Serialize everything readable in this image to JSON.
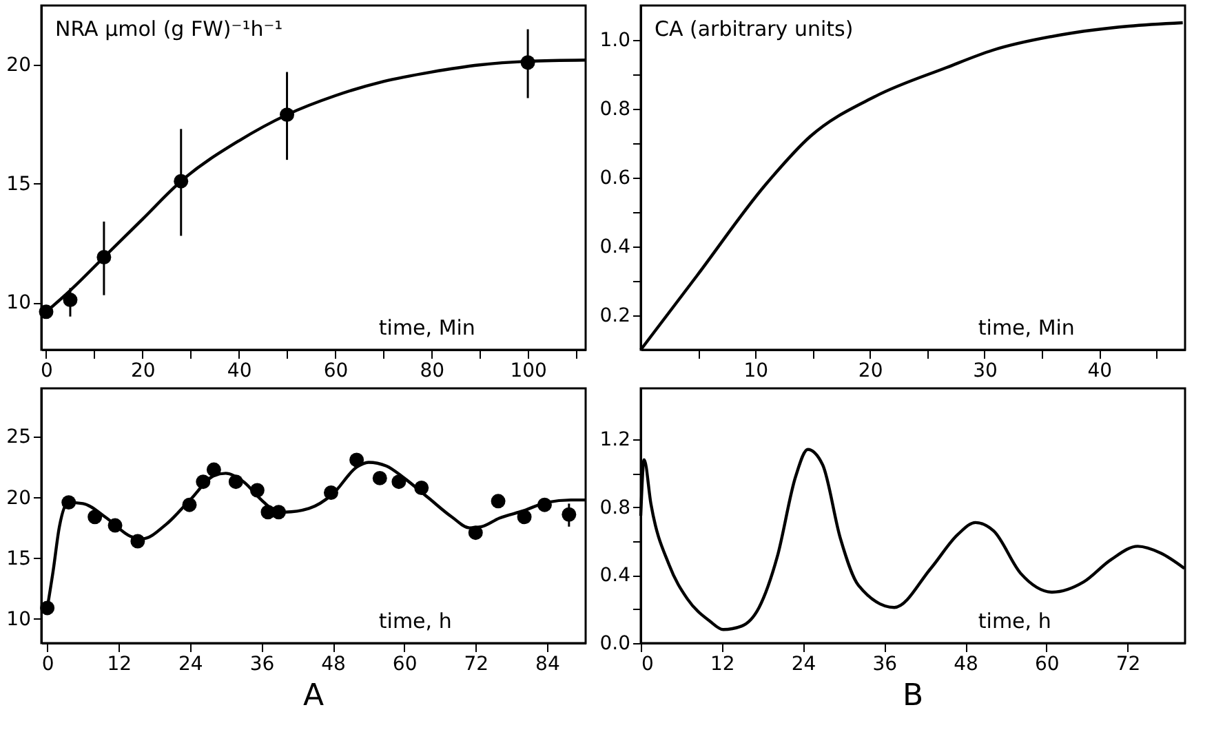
{
  "chart_data": [
    {
      "type": "scatter",
      "ylabel": "NRA µmol (g FW)⁻¹h⁻¹",
      "xlabel": "time, Min",
      "xlim": [
        -1,
        112
      ],
      "ylim": [
        8,
        22.5
      ],
      "xticks": [
        0,
        {
          "value": 10,
          "label": null
        },
        20,
        {
          "value": 30,
          "label": null
        },
        40,
        {
          "value": 50,
          "label": null
        },
        60,
        {
          "value": 70,
          "label": null
        },
        80,
        {
          "value": 90,
          "label": null
        },
        100,
        {
          "value": 110,
          "label": null
        }
      ],
      "yticks": [
        10,
        15,
        20
      ],
      "grid": false,
      "series": [
        {
          "marker": "circle",
          "color": "#000000",
          "x": [
            0,
            5,
            12,
            28,
            50,
            100
          ],
          "values": [
            9.6,
            10.1,
            11.9,
            15.1,
            17.9,
            20.1
          ],
          "errors": [
            null,
            [
              9.4,
              10.6
            ],
            [
              10.3,
              13.4
            ],
            [
              12.8,
              17.3
            ],
            [
              16.0,
              19.7
            ],
            [
              18.6,
              21.5
            ]
          ]
        },
        {
          "type": "line",
          "color": "#000000",
          "x": [
            0,
            5,
            12,
            20,
            28,
            40,
            50,
            60,
            70,
            80,
            90,
            100,
            112
          ],
          "values": [
            9.6,
            10.5,
            11.9,
            13.5,
            15.1,
            16.8,
            17.9,
            18.7,
            19.3,
            19.7,
            20.0,
            20.15,
            20.2
          ]
        }
      ]
    },
    {
      "type": "line",
      "ylabel": "CA (arbitrary units)",
      "xlabel": "time, Min",
      "xlim": [
        0,
        47.5
      ],
      "ylim": [
        0.1,
        1.1
      ],
      "xticks": [
        {
          "value": 5,
          "label": null
        },
        10,
        {
          "value": 15,
          "label": null
        },
        20,
        {
          "value": 25,
          "label": null
        },
        30,
        {
          "value": 35,
          "label": null
        },
        40,
        {
          "value": 45,
          "label": null
        }
      ],
      "yticks": [
        0.2,
        {
          "value": 0.3,
          "label": null
        },
        0.4,
        {
          "value": 0.5,
          "label": null
        },
        0.6,
        {
          "value": 0.7,
          "label": null
        },
        0.8,
        {
          "value": 0.9,
          "label": null
        },
        {
          "value": 1.0,
          "label": "1.0"
        }
      ],
      "grid": false,
      "series": [
        {
          "color": "#000000",
          "x": [
            0,
            4.9,
            10.9,
            14.8,
            20.4,
            26.7,
            30.7,
            36.7,
            42.6,
            47.3
          ],
          "values": [
            0.1,
            0.315,
            0.58,
            0.72,
            0.835,
            0.92,
            0.97,
            1.015,
            1.04,
            1.05
          ]
        }
      ]
    },
    {
      "type": "scatter",
      "xlabel": "time, h",
      "xlim": [
        -1,
        90.5
      ],
      "ylim": [
        8,
        29
      ],
      "xticks": [
        0,
        12,
        24,
        36,
        48,
        60,
        72,
        84
      ],
      "yticks": [
        10,
        15,
        20,
        25
      ],
      "grid": false,
      "annotations": [
        "A"
      ],
      "series": [
        {
          "marker": "circle",
          "color": "#000000",
          "x": [
            0,
            3.6,
            8.0,
            11.4,
            15.2,
            23.9,
            26.2,
            28.0,
            31.7,
            35.3,
            37.1,
            38.9,
            47.7,
            52.0,
            55.9,
            59.1,
            62.9,
            72.0,
            75.8,
            80.2,
            83.6,
            87.7
          ],
          "values": [
            10.9,
            19.6,
            18.4,
            17.7,
            16.4,
            19.4,
            21.3,
            22.3,
            21.3,
            20.6,
            18.8,
            18.8,
            20.4,
            23.1,
            21.6,
            21.3,
            20.8,
            17.1,
            19.7,
            18.4,
            19.4,
            18.6
          ],
          "errors": [
            null,
            null,
            null,
            null,
            null,
            null,
            null,
            null,
            null,
            null,
            null,
            null,
            null,
            null,
            null,
            null,
            null,
            null,
            null,
            null,
            null,
            [
              17.6,
              19.5
            ]
          ]
        },
        {
          "type": "line",
          "color": "#000000",
          "x": [
            0,
            1,
            2,
            3.5,
            6,
            10,
            14,
            16,
            20,
            24,
            28,
            30,
            33,
            36,
            38,
            40,
            44,
            48,
            52,
            54,
            57,
            60,
            64,
            68,
            71,
            73,
            76,
            80,
            84,
            88,
            90.5
          ],
          "values": [
            10.9,
            14,
            17.5,
            19.6,
            19.5,
            18.3,
            16.8,
            16.6,
            17.8,
            19.8,
            21.8,
            22.0,
            21.3,
            19.8,
            19.0,
            18.8,
            19.1,
            20.3,
            22.5,
            22.9,
            22.6,
            21.6,
            20.0,
            18.4,
            17.5,
            17.6,
            18.3,
            18.9,
            19.6,
            19.8,
            19.8
          ]
        }
      ]
    },
    {
      "type": "line",
      "xlabel": "time, h",
      "xlim": [
        0,
        80.5
      ],
      "ylim": [
        0,
        1.5
      ],
      "xticks": [
        0,
        12,
        24,
        36,
        48,
        60,
        72
      ],
      "yticks": [
        {
          "value": 0,
          "label": "0.0"
        },
        {
          "value": 0.2,
          "label": null
        },
        0.4,
        {
          "value": 0.6,
          "label": null
        },
        0.8,
        {
          "value": 1.0,
          "label": null
        },
        1.2
      ],
      "grid": false,
      "annotations": [
        "B"
      ],
      "series": [
        {
          "color": "#000000",
          "x": [
            0,
            0.5,
            1.5,
            4.2,
            6.9,
            10.2,
            12.2,
            14.9,
            17.5,
            20.2,
            22.9,
            24.7,
            26.9,
            29.5,
            32.2,
            37.5,
            42.9,
            46.9,
            49.5,
            52.2,
            56.2,
            60.9,
            65.5,
            69.5,
            73.5,
            76.9,
            80.4
          ],
          "values": [
            0.75,
            1.08,
            0.82,
            0.46,
            0.26,
            0.13,
            0.08,
            0.1,
            0.21,
            0.51,
            0.98,
            1.14,
            1.05,
            0.62,
            0.34,
            0.21,
            0.44,
            0.64,
            0.71,
            0.66,
            0.41,
            0.3,
            0.36,
            0.49,
            0.57,
            0.53,
            0.44
          ]
        }
      ]
    }
  ]
}
